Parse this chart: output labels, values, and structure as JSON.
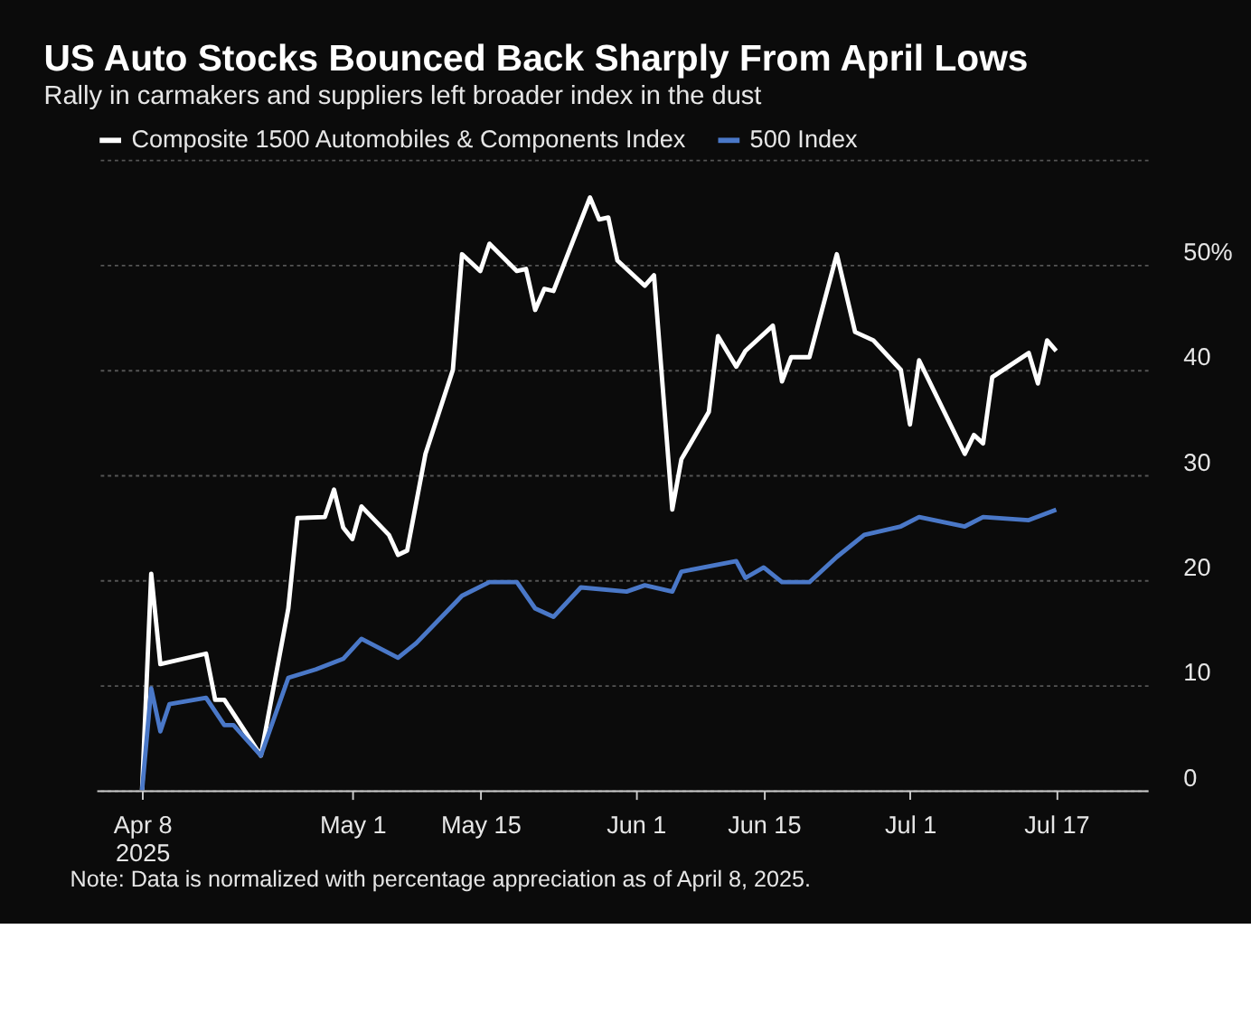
{
  "chart_data": {
    "type": "line",
    "title": "US Auto Stocks Bounced Back Sharply From April Lows",
    "subtitle": "Rally in carmakers and suppliers left broader index in the dust",
    "annotations": [
      "Note: Data is normalized with percentage appreciation as of April 8, 2025."
    ],
    "series": [
      {
        "name": "Composite 1500 Automobiles & Components Index",
        "color": "#ffffff",
        "x": [
          "2025-04-08",
          "2025-04-09",
          "2025-04-10",
          "2025-04-15",
          "2025-04-16",
          "2025-04-17",
          "2025-04-21",
          "2025-04-24",
          "2025-04-25",
          "2025-04-28",
          "2025-04-29",
          "2025-04-30",
          "2025-05-01",
          "2025-05-02",
          "2025-05-05",
          "2025-05-06",
          "2025-05-07",
          "2025-05-09",
          "2025-05-12",
          "2025-05-13",
          "2025-05-15",
          "2025-05-16",
          "2025-05-19",
          "2025-05-20",
          "2025-05-21",
          "2025-05-22",
          "2025-05-23",
          "2025-05-27",
          "2025-05-28",
          "2025-05-29",
          "2025-05-30",
          "2025-06-02",
          "2025-06-03",
          "2025-06-05",
          "2025-06-06",
          "2025-06-09",
          "2025-06-10",
          "2025-06-12",
          "2025-06-13",
          "2025-06-16",
          "2025-06-17",
          "2025-06-18",
          "2025-06-20",
          "2025-06-23",
          "2025-06-25",
          "2025-06-27",
          "2025-06-30",
          "2025-07-01",
          "2025-07-02",
          "2025-07-07",
          "2025-07-08",
          "2025-07-09",
          "2025-07-10",
          "2025-07-14",
          "2025-07-15",
          "2025-07-16",
          "2025-07-17"
        ],
        "values": [
          0,
          20.6,
          12,
          13,
          8.6,
          8.6,
          3.3,
          17.3,
          25.9,
          26,
          28.6,
          25,
          23.9,
          27,
          24.3,
          22.4,
          22.8,
          32,
          40,
          51,
          49.4,
          52,
          49.4,
          49.6,
          45.7,
          47.7,
          47.5,
          56.4,
          54.3,
          54.5,
          50.4,
          48,
          49,
          26.7,
          31.5,
          36,
          43.2,
          40.3,
          41.8,
          44.2,
          38.9,
          41.2,
          41.2,
          51,
          43.6,
          42.8,
          40,
          34.8,
          40.9,
          32,
          33.8,
          33,
          39.3,
          41.6,
          38.7,
          42.8,
          41.8
        ]
      },
      {
        "name": "500 Index",
        "color": "#4a78c8",
        "x": [
          "2025-04-08",
          "2025-04-09",
          "2025-04-10",
          "2025-04-11",
          "2025-04-15",
          "2025-04-17",
          "2025-04-18",
          "2025-04-21",
          "2025-04-24",
          "2025-04-27",
          "2025-04-30",
          "2025-05-02",
          "2025-05-06",
          "2025-05-08",
          "2025-05-13",
          "2025-05-16",
          "2025-05-19",
          "2025-05-21",
          "2025-05-23",
          "2025-05-26",
          "2025-05-31",
          "2025-06-02",
          "2025-06-05",
          "2025-06-06",
          "2025-06-12",
          "2025-06-13",
          "2025-06-15",
          "2025-06-17",
          "2025-06-20",
          "2025-06-23",
          "2025-06-26",
          "2025-06-30",
          "2025-07-02",
          "2025-07-07",
          "2025-07-09",
          "2025-07-14",
          "2025-07-17"
        ],
        "values": [
          0,
          9.7,
          5.6,
          8.2,
          8.8,
          6.2,
          6.2,
          3.3,
          10.7,
          11.5,
          12.5,
          14.4,
          12.6,
          14,
          18.5,
          19.8,
          19.8,
          17.3,
          16.5,
          19.3,
          18.9,
          19.5,
          18.9,
          20.8,
          21.8,
          20.2,
          21.2,
          19.8,
          19.8,
          22.2,
          24.3,
          25.1,
          26,
          25.1,
          26,
          25.7,
          26.7
        ]
      }
    ],
    "xlim": [
      "2025-04-03",
      "2025-07-27"
    ],
    "xticks": [
      {
        "value": "2025-04-08",
        "label": "Apr 8\n2025"
      },
      {
        "value": "2025-05-01",
        "label": "May 1"
      },
      {
        "value": "2025-05-15",
        "label": "May 15"
      },
      {
        "value": "2025-06-01",
        "label": "Jun 1"
      },
      {
        "value": "2025-06-15",
        "label": "Jun 15"
      },
      {
        "value": "2025-07-01",
        "label": "Jul 1"
      },
      {
        "value": "2025-07-17",
        "label": "Jul 17"
      }
    ],
    "ylim": [
      0,
      60
    ],
    "yticks": [
      0,
      10,
      20,
      30,
      40,
      {
        "value": 50,
        "label": "50%"
      },
      {
        "value": 60,
        "label": null
      }
    ],
    "grid": "y",
    "legend": "top left",
    "line_style": "solid",
    "marker": "none"
  }
}
